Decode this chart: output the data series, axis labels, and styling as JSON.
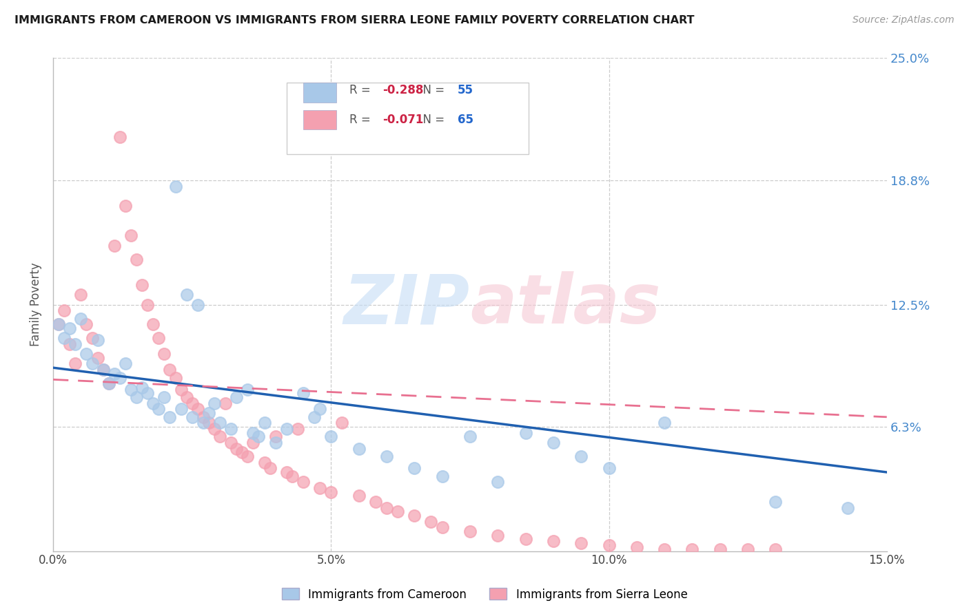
{
  "title": "IMMIGRANTS FROM CAMEROON VS IMMIGRANTS FROM SIERRA LEONE FAMILY POVERTY CORRELATION CHART",
  "source": "Source: ZipAtlas.com",
  "ylabel": "Family Poverty",
  "x_min": 0.0,
  "x_max": 0.15,
  "y_min": 0.0,
  "y_max": 0.25,
  "x_ticks": [
    0.0,
    0.05,
    0.1,
    0.15
  ],
  "x_tick_labels": [
    "0.0%",
    "5.0%",
    "10.0%",
    "15.0%"
  ],
  "y_ticks": [
    0.063,
    0.125,
    0.188,
    0.25
  ],
  "y_tick_labels": [
    "6.3%",
    "12.5%",
    "18.8%",
    "25.0%"
  ],
  "cameroon_color": "#a8c8e8",
  "sierra_leone_color": "#f4a0b0",
  "cameroon_line_color": "#2060b0",
  "sierra_leone_line_color": "#e87090",
  "cameroon_R": -0.288,
  "cameroon_N": 55,
  "sierra_leone_R": -0.071,
  "sierra_leone_N": 65,
  "legend_label_1": "Immigrants from Cameroon",
  "legend_label_2": "Immigrants from Sierra Leone",
  "cameroon_scatter": [
    [
      0.001,
      0.115
    ],
    [
      0.002,
      0.108
    ],
    [
      0.003,
      0.113
    ],
    [
      0.004,
      0.105
    ],
    [
      0.005,
      0.118
    ],
    [
      0.006,
      0.1
    ],
    [
      0.007,
      0.095
    ],
    [
      0.008,
      0.107
    ],
    [
      0.009,
      0.092
    ],
    [
      0.01,
      0.085
    ],
    [
      0.011,
      0.09
    ],
    [
      0.012,
      0.088
    ],
    [
      0.013,
      0.095
    ],
    [
      0.014,
      0.082
    ],
    [
      0.015,
      0.078
    ],
    [
      0.016,
      0.083
    ],
    [
      0.017,
      0.08
    ],
    [
      0.018,
      0.075
    ],
    [
      0.019,
      0.072
    ],
    [
      0.02,
      0.078
    ],
    [
      0.021,
      0.068
    ],
    [
      0.022,
      0.185
    ],
    [
      0.023,
      0.072
    ],
    [
      0.024,
      0.13
    ],
    [
      0.025,
      0.068
    ],
    [
      0.026,
      0.125
    ],
    [
      0.027,
      0.065
    ],
    [
      0.028,
      0.07
    ],
    [
      0.029,
      0.075
    ],
    [
      0.03,
      0.065
    ],
    [
      0.032,
      0.062
    ],
    [
      0.033,
      0.078
    ],
    [
      0.035,
      0.082
    ],
    [
      0.036,
      0.06
    ],
    [
      0.037,
      0.058
    ],
    [
      0.038,
      0.065
    ],
    [
      0.04,
      0.055
    ],
    [
      0.042,
      0.062
    ],
    [
      0.045,
      0.08
    ],
    [
      0.047,
      0.068
    ],
    [
      0.048,
      0.072
    ],
    [
      0.05,
      0.058
    ],
    [
      0.055,
      0.052
    ],
    [
      0.06,
      0.048
    ],
    [
      0.065,
      0.042
    ],
    [
      0.07,
      0.038
    ],
    [
      0.075,
      0.058
    ],
    [
      0.08,
      0.035
    ],
    [
      0.085,
      0.06
    ],
    [
      0.09,
      0.055
    ],
    [
      0.095,
      0.048
    ],
    [
      0.1,
      0.042
    ],
    [
      0.11,
      0.065
    ],
    [
      0.13,
      0.025
    ],
    [
      0.143,
      0.022
    ]
  ],
  "sierra_leone_scatter": [
    [
      0.001,
      0.115
    ],
    [
      0.002,
      0.122
    ],
    [
      0.003,
      0.105
    ],
    [
      0.004,
      0.095
    ],
    [
      0.005,
      0.13
    ],
    [
      0.006,
      0.115
    ],
    [
      0.007,
      0.108
    ],
    [
      0.008,
      0.098
    ],
    [
      0.009,
      0.092
    ],
    [
      0.01,
      0.085
    ],
    [
      0.011,
      0.155
    ],
    [
      0.012,
      0.21
    ],
    [
      0.013,
      0.175
    ],
    [
      0.014,
      0.16
    ],
    [
      0.015,
      0.148
    ],
    [
      0.016,
      0.135
    ],
    [
      0.017,
      0.125
    ],
    [
      0.018,
      0.115
    ],
    [
      0.019,
      0.108
    ],
    [
      0.02,
      0.1
    ],
    [
      0.021,
      0.092
    ],
    [
      0.022,
      0.088
    ],
    [
      0.023,
      0.082
    ],
    [
      0.024,
      0.078
    ],
    [
      0.025,
      0.075
    ],
    [
      0.026,
      0.072
    ],
    [
      0.027,
      0.068
    ],
    [
      0.028,
      0.065
    ],
    [
      0.029,
      0.062
    ],
    [
      0.03,
      0.058
    ],
    [
      0.031,
      0.075
    ],
    [
      0.032,
      0.055
    ],
    [
      0.033,
      0.052
    ],
    [
      0.034,
      0.05
    ],
    [
      0.035,
      0.048
    ],
    [
      0.036,
      0.055
    ],
    [
      0.038,
      0.045
    ],
    [
      0.039,
      0.042
    ],
    [
      0.04,
      0.058
    ],
    [
      0.042,
      0.04
    ],
    [
      0.043,
      0.038
    ],
    [
      0.044,
      0.062
    ],
    [
      0.045,
      0.035
    ],
    [
      0.048,
      0.032
    ],
    [
      0.05,
      0.03
    ],
    [
      0.052,
      0.065
    ],
    [
      0.055,
      0.028
    ],
    [
      0.058,
      0.025
    ],
    [
      0.06,
      0.022
    ],
    [
      0.062,
      0.02
    ],
    [
      0.065,
      0.018
    ],
    [
      0.068,
      0.015
    ],
    [
      0.07,
      0.012
    ],
    [
      0.075,
      0.01
    ],
    [
      0.08,
      0.008
    ],
    [
      0.085,
      0.006
    ],
    [
      0.09,
      0.005
    ],
    [
      0.095,
      0.004
    ],
    [
      0.1,
      0.003
    ],
    [
      0.105,
      0.002
    ],
    [
      0.11,
      0.001
    ],
    [
      0.115,
      0.001
    ],
    [
      0.12,
      0.001
    ],
    [
      0.125,
      0.001
    ],
    [
      0.13,
      0.001
    ]
  ],
  "cam_line_x0": 0.0,
  "cam_line_y0": 0.093,
  "cam_line_x1": 0.15,
  "cam_line_y1": 0.04,
  "sle_line_x0": 0.0,
  "sle_line_y0": 0.087,
  "sle_line_x1": 0.15,
  "sle_line_y1": 0.068
}
